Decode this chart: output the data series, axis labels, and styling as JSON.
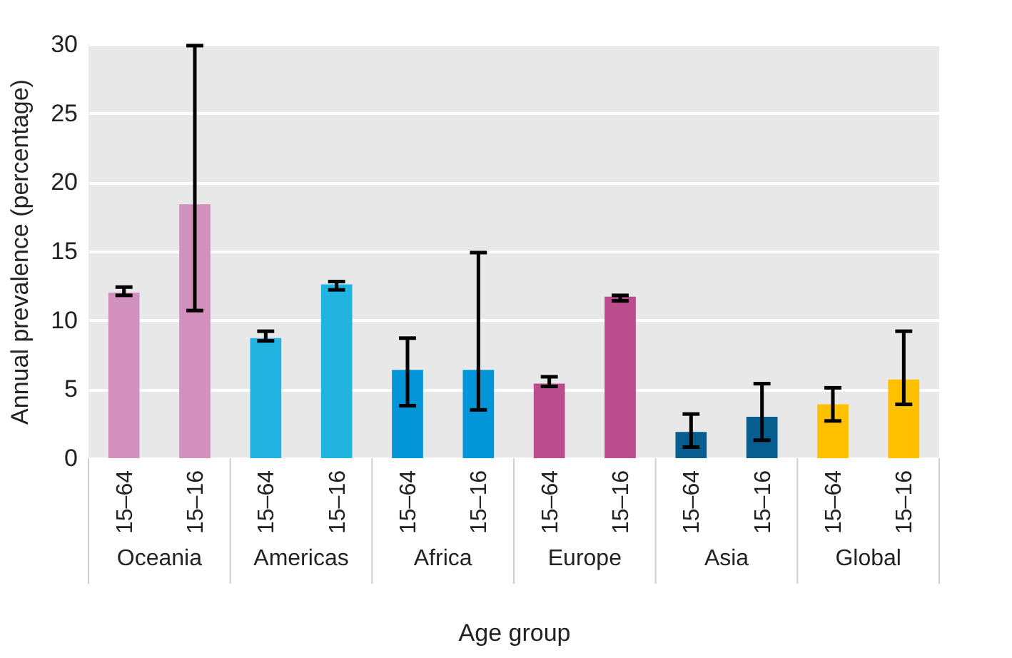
{
  "chart_data": {
    "type": "bar",
    "xlabel": "Age group",
    "ylabel": "Annual prevalence (percentage)",
    "categories": [
      "15–64",
      "15–16",
      "15–64",
      "15–16",
      "15–64",
      "15–16",
      "15–64",
      "15–16",
      "15–64",
      "15–16",
      "15–64",
      "15–16"
    ],
    "values": [
      12.0,
      18.4,
      8.7,
      12.6,
      6.4,
      6.4,
      5.4,
      11.7,
      1.9,
      3.0,
      3.9,
      5.7
    ],
    "errors": [
      [
        11.8,
        12.4
      ],
      [
        10.7,
        29.9
      ],
      [
        8.5,
        9.2
      ],
      [
        12.2,
        12.8
      ],
      [
        3.8,
        8.7
      ],
      [
        3.5,
        14.9
      ],
      [
        5.2,
        5.9
      ],
      [
        11.4,
        11.8
      ],
      [
        0.8,
        3.2
      ],
      [
        1.3,
        5.4
      ],
      [
        2.7,
        5.1
      ],
      [
        3.9,
        9.2
      ]
    ],
    "colors": [
      "#d291bc",
      "#d291bc",
      "#21b4e1",
      "#21b4e1",
      "#0296d8",
      "#0296d8",
      "#bb4d8f",
      "#bb4d8f",
      "#075e8e",
      "#075e8e",
      "#ffc000",
      "#ffc000"
    ],
    "annotations": [
      "Oceania",
      "Americas",
      "Africa",
      "Europe",
      "Asia",
      "Global"
    ],
    "ylim": [
      0,
      30
    ],
    "yticks": [
      0,
      5,
      10,
      15,
      20,
      25,
      30
    ],
    "grid": "y"
  }
}
